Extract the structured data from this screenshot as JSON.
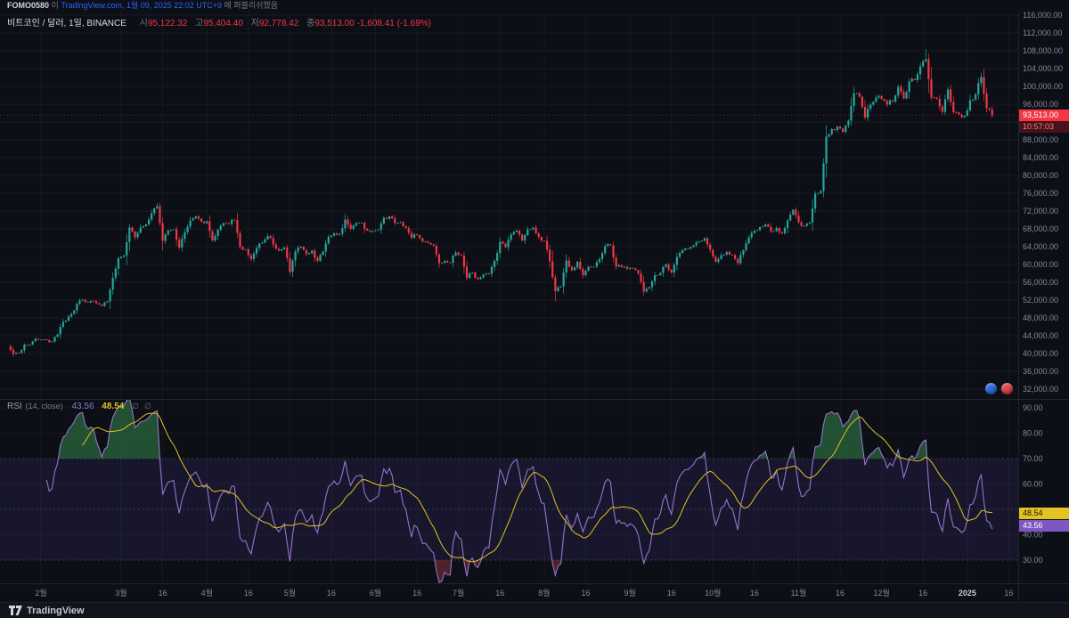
{
  "publish_bar": {
    "user": "FOMO0580",
    "particle1": "이",
    "site": "TradingView.com,",
    "datetime": "1월 09, 2025 22:02 UTC+9",
    "particle2": "에 퍼블리쉬했음"
  },
  "legend": {
    "symbol": "비트코인 / 달러, 1일, BINANCE",
    "open_label": "시",
    "open": "95,122.32",
    "high_label": "고",
    "high": "95,404.40",
    "low_label": "저",
    "low": "92,778.42",
    "close_label": "종",
    "close": "93,513.00",
    "change": "-1,608.41 (-1.69%)"
  },
  "price_scale": {
    "ticks": [
      "116,000.00",
      "112,000.00",
      "108,000.00",
      "104,000.00",
      "100,000.00",
      "96,000.00",
      "92,000.00",
      "88,000.00",
      "84,000.00",
      "80,000.00",
      "76,000.00",
      "72,000.00",
      "68,000.00",
      "64,000.00",
      "60,000.00",
      "56,000.00",
      "52,000.00",
      "48,000.00",
      "44,000.00",
      "40,000.00",
      "36,000.00",
      "32,000.00"
    ],
    "last_price_label": "93,513.00",
    "countdown": "10:57:03"
  },
  "rsi_pane": {
    "title": "RSI",
    "params": "(14, close)",
    "value": "43.56",
    "ma_value": "48.54",
    "ghost1": "∅",
    "ghost2": "∅",
    "ticks": [
      "90.00",
      "80.00",
      "70.00",
      "60.00",
      "40.00",
      "30.00"
    ]
  },
  "time_axis": {
    "labels": [
      {
        "text": "2월",
        "day": 12
      },
      {
        "text": "3월",
        "day": 41
      },
      {
        "text": "16",
        "day": 56
      },
      {
        "text": "4월",
        "day": 72
      },
      {
        "text": "16",
        "day": 87
      },
      {
        "text": "5월",
        "day": 102
      },
      {
        "text": "16",
        "day": 117
      },
      {
        "text": "6월",
        "day": 133
      },
      {
        "text": "16",
        "day": 148
      },
      {
        "text": "7월",
        "day": 163
      },
      {
        "text": "16",
        "day": 178
      },
      {
        "text": "8월",
        "day": 194
      },
      {
        "text": "16",
        "day": 209
      },
      {
        "text": "9월",
        "day": 225
      },
      {
        "text": "16",
        "day": 240
      },
      {
        "text": "10월",
        "day": 255
      },
      {
        "text": "16",
        "day": 270
      },
      {
        "text": "11월",
        "day": 286
      },
      {
        "text": "16",
        "day": 301
      },
      {
        "text": "12월",
        "day": 316
      },
      {
        "text": "16",
        "day": 331
      },
      {
        "text": "2025",
        "day": 347,
        "year": true
      },
      {
        "text": "16",
        "day": 362
      }
    ]
  },
  "reactions": [
    {
      "color": "#2e6bde"
    },
    {
      "color": "#e04646"
    }
  ],
  "footer": {
    "logo_text": "TradingView"
  },
  "chart_data": {
    "type": "candlestick",
    "symbol": "비트코인 / 달러 (BTC/USD)",
    "exchange": "BINANCE",
    "interval": "1일",
    "title": "비트코인 / 달러, 1일, BINANCE",
    "ohlc_today": {
      "open": 95122.32,
      "high": 95404.4,
      "low": 92778.42,
      "close": 93513.0,
      "change": -1608.41,
      "change_pct": -1.69
    },
    "price_axis": {
      "min": 32000,
      "max": 116000,
      "step": 4000
    },
    "up_color": "#26a69a",
    "down_color": "#f23645",
    "closes_approx_2d": [
      41600,
      39900,
      40100,
      42000,
      42000,
      43300,
      43100,
      43000,
      42700,
      44300,
      47100,
      48300,
      49700,
      51900,
      51600,
      51800,
      51300,
      50700,
      51700,
      57000,
      61400,
      62000,
      68300,
      66100,
      68300,
      69000,
      71500,
      73100,
      65300,
      67600,
      67900,
      63800,
      67200,
      69900,
      70800,
      69600,
      69700,
      65400,
      67800,
      69300,
      69100,
      70000,
      63900,
      63400,
      61200,
      63700,
      64900,
      66400,
      64500,
      63100,
      63800,
      58300,
      62900,
      64000,
      62300,
      63100,
      60800,
      62900,
      66200,
      67000,
      66900,
      70100,
      68000,
      69300,
      69400,
      67600,
      67500,
      67800,
      70500,
      70800,
      69300,
      69500,
      68200,
      66000,
      66600,
      65100,
      64800,
      64200,
      60300,
      60800,
      60400,
      62700,
      62000,
      57000,
      58200,
      56700,
      57700,
      57900,
      60800,
      65100,
      63900,
      66700,
      67600,
      65400,
      67900,
      68300,
      66200,
      65300,
      60700,
      54000,
      55100,
      60900,
      58700,
      60600,
      57600,
      59500,
      59500,
      61200,
      64100,
      64300,
      59500,
      59400,
      59000,
      59100,
      58000,
      53900,
      54900,
      57600,
      58100,
      60000,
      58200,
      61700,
      63200,
      63600,
      64300,
      65200,
      65900,
      63300,
      60600,
      62100,
      62800,
      62100,
      60300,
      63200,
      66100,
      67600,
      68400,
      69000,
      67400,
      68200,
      67000,
      69900,
      72300,
      69500,
      68700,
      69400,
      75900,
      76500,
      88700,
      90400,
      91000,
      89800,
      92300,
      98400,
      97700,
      93000,
      95900,
      97500,
      97200,
      95900,
      96600,
      99900,
      97300,
      101100,
      101400,
      104500,
      106100,
      97500,
      97200,
      94300,
      99300,
      94200,
      93700,
      93400,
      96900,
      98200,
      102100,
      95100,
      93513
    ],
    "wick_overrides": {
      "27": {
        "high": 73777
      },
      "99": {
        "low": 51800
      },
      "166": {
        "high": 108364
      }
    },
    "indicator": {
      "name": "RSI",
      "length": 14,
      "source": "close",
      "value": 43.56,
      "ma_value": 48.54,
      "line_color": "#9575cd",
      "ma_color": "#e2c321",
      "overbought": 70,
      "middle": 50,
      "oversold": 30,
      "axis_range": [
        30,
        90
      ]
    }
  }
}
